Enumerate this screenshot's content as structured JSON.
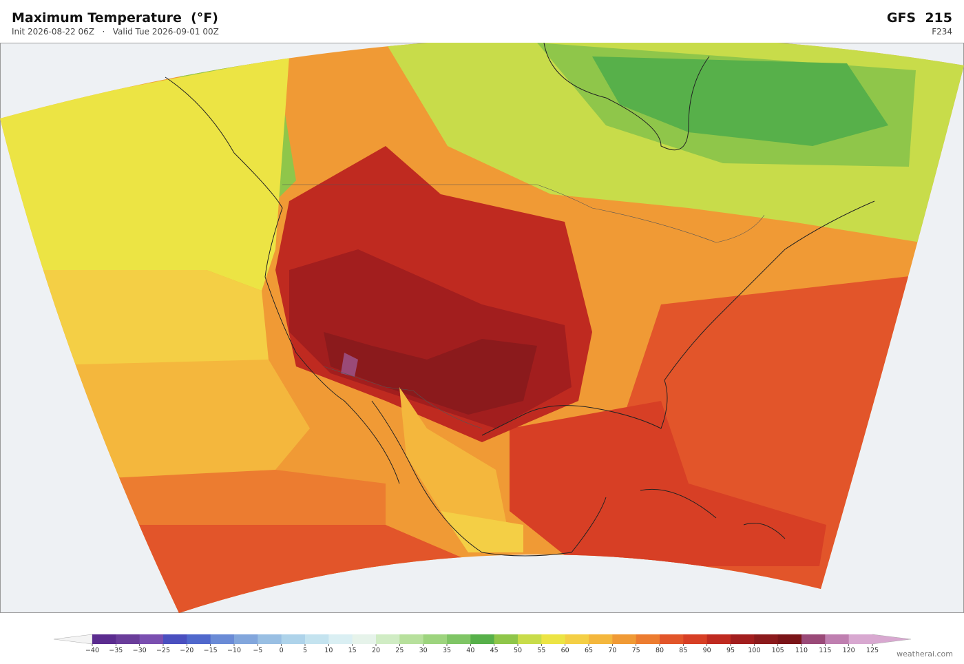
{
  "header": {
    "title": "Maximum Temperature  (°F)",
    "init": "Init 2026-08-22 06Z",
    "separator": "·",
    "valid": "Valid Tue 2026-09-01 00Z",
    "model": "GFS  215",
    "forecast_hour": "F234"
  },
  "colorbar": {
    "ticks": [
      {
        "value": -40,
        "label": "−40"
      },
      {
        "value": -35,
        "label": "−35"
      },
      {
        "value": -30,
        "label": "−30"
      },
      {
        "value": -25,
        "label": "−25"
      },
      {
        "value": -20,
        "label": "−20"
      },
      {
        "value": -15,
        "label": "−15"
      },
      {
        "value": -10,
        "label": "−10"
      },
      {
        "value": -5,
        "label": "−5"
      },
      0,
      5,
      10,
      15,
      20,
      25,
      30,
      35,
      40,
      45,
      50,
      55,
      60,
      65,
      70,
      75,
      80,
      85,
      90,
      95,
      100,
      105,
      110,
      115,
      120,
      125
    ],
    "colors": [
      "#5b2c8f",
      "#6a3d9a",
      "#7a4fb0",
      "#4a4fbf",
      "#5068cc",
      "#6a8bd6",
      "#82a6dc",
      "#99bfe3",
      "#aed3ea",
      "#c4e3ef",
      "#daeff3",
      "#e6f3ea",
      "#d0ecc4",
      "#b7e09c",
      "#9dd47e",
      "#7fc565",
      "#57b04a",
      "#8fc64a",
      "#c8dc4a",
      "#ece444",
      "#f4cf45",
      "#f4b73d",
      "#f09a35",
      "#ec7c30",
      "#e2552a",
      "#d73f25",
      "#bf2a20",
      "#a21e1e",
      "#8b1a1c",
      "#7a1418",
      "#9a4a78",
      "#bf7fb0",
      "#d8a8d0"
    ],
    "under_color": "#f4f4f4",
    "over_color": "#d8a8d0"
  },
  "footer": {
    "credit": "weatherai.com"
  }
}
